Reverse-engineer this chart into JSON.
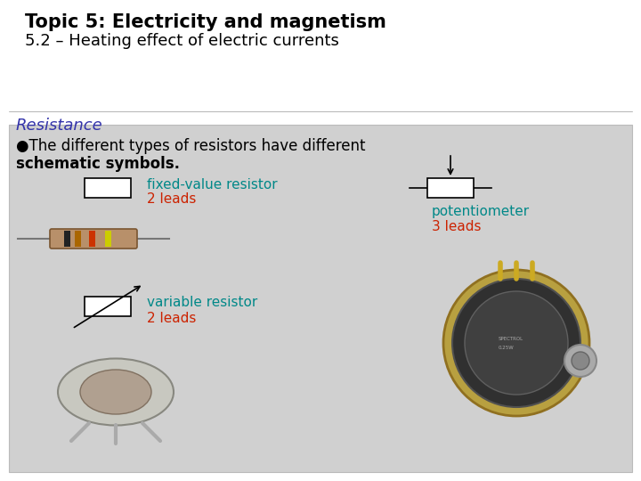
{
  "title_line1": "Topic 5: Electricity and magnetism",
  "title_line2": "5.2 – Heating effect of electric currents",
  "section_title": "Resistance",
  "bullet_text1": "●The different types of resistors have different",
  "bullet_text2": "schematic symbols.",
  "label_fixed_cyan": "fixed-value resistor",
  "label_fixed_red": "2 leads",
  "label_var_cyan": "variable resistor",
  "label_var_red": "2 leads",
  "label_pot_cyan": "potentiometer",
  "label_pot_red": "3 leads",
  "bg_white": "#ffffff",
  "bg_box": "#d0d0d0",
  "section_color": "#3333aa",
  "cyan_color": "#008888",
  "red_color": "#cc2200",
  "title1_fontsize": 15,
  "title2_fontsize": 13,
  "section_fontsize": 13,
  "body_fontsize": 12,
  "label_fontsize": 11
}
